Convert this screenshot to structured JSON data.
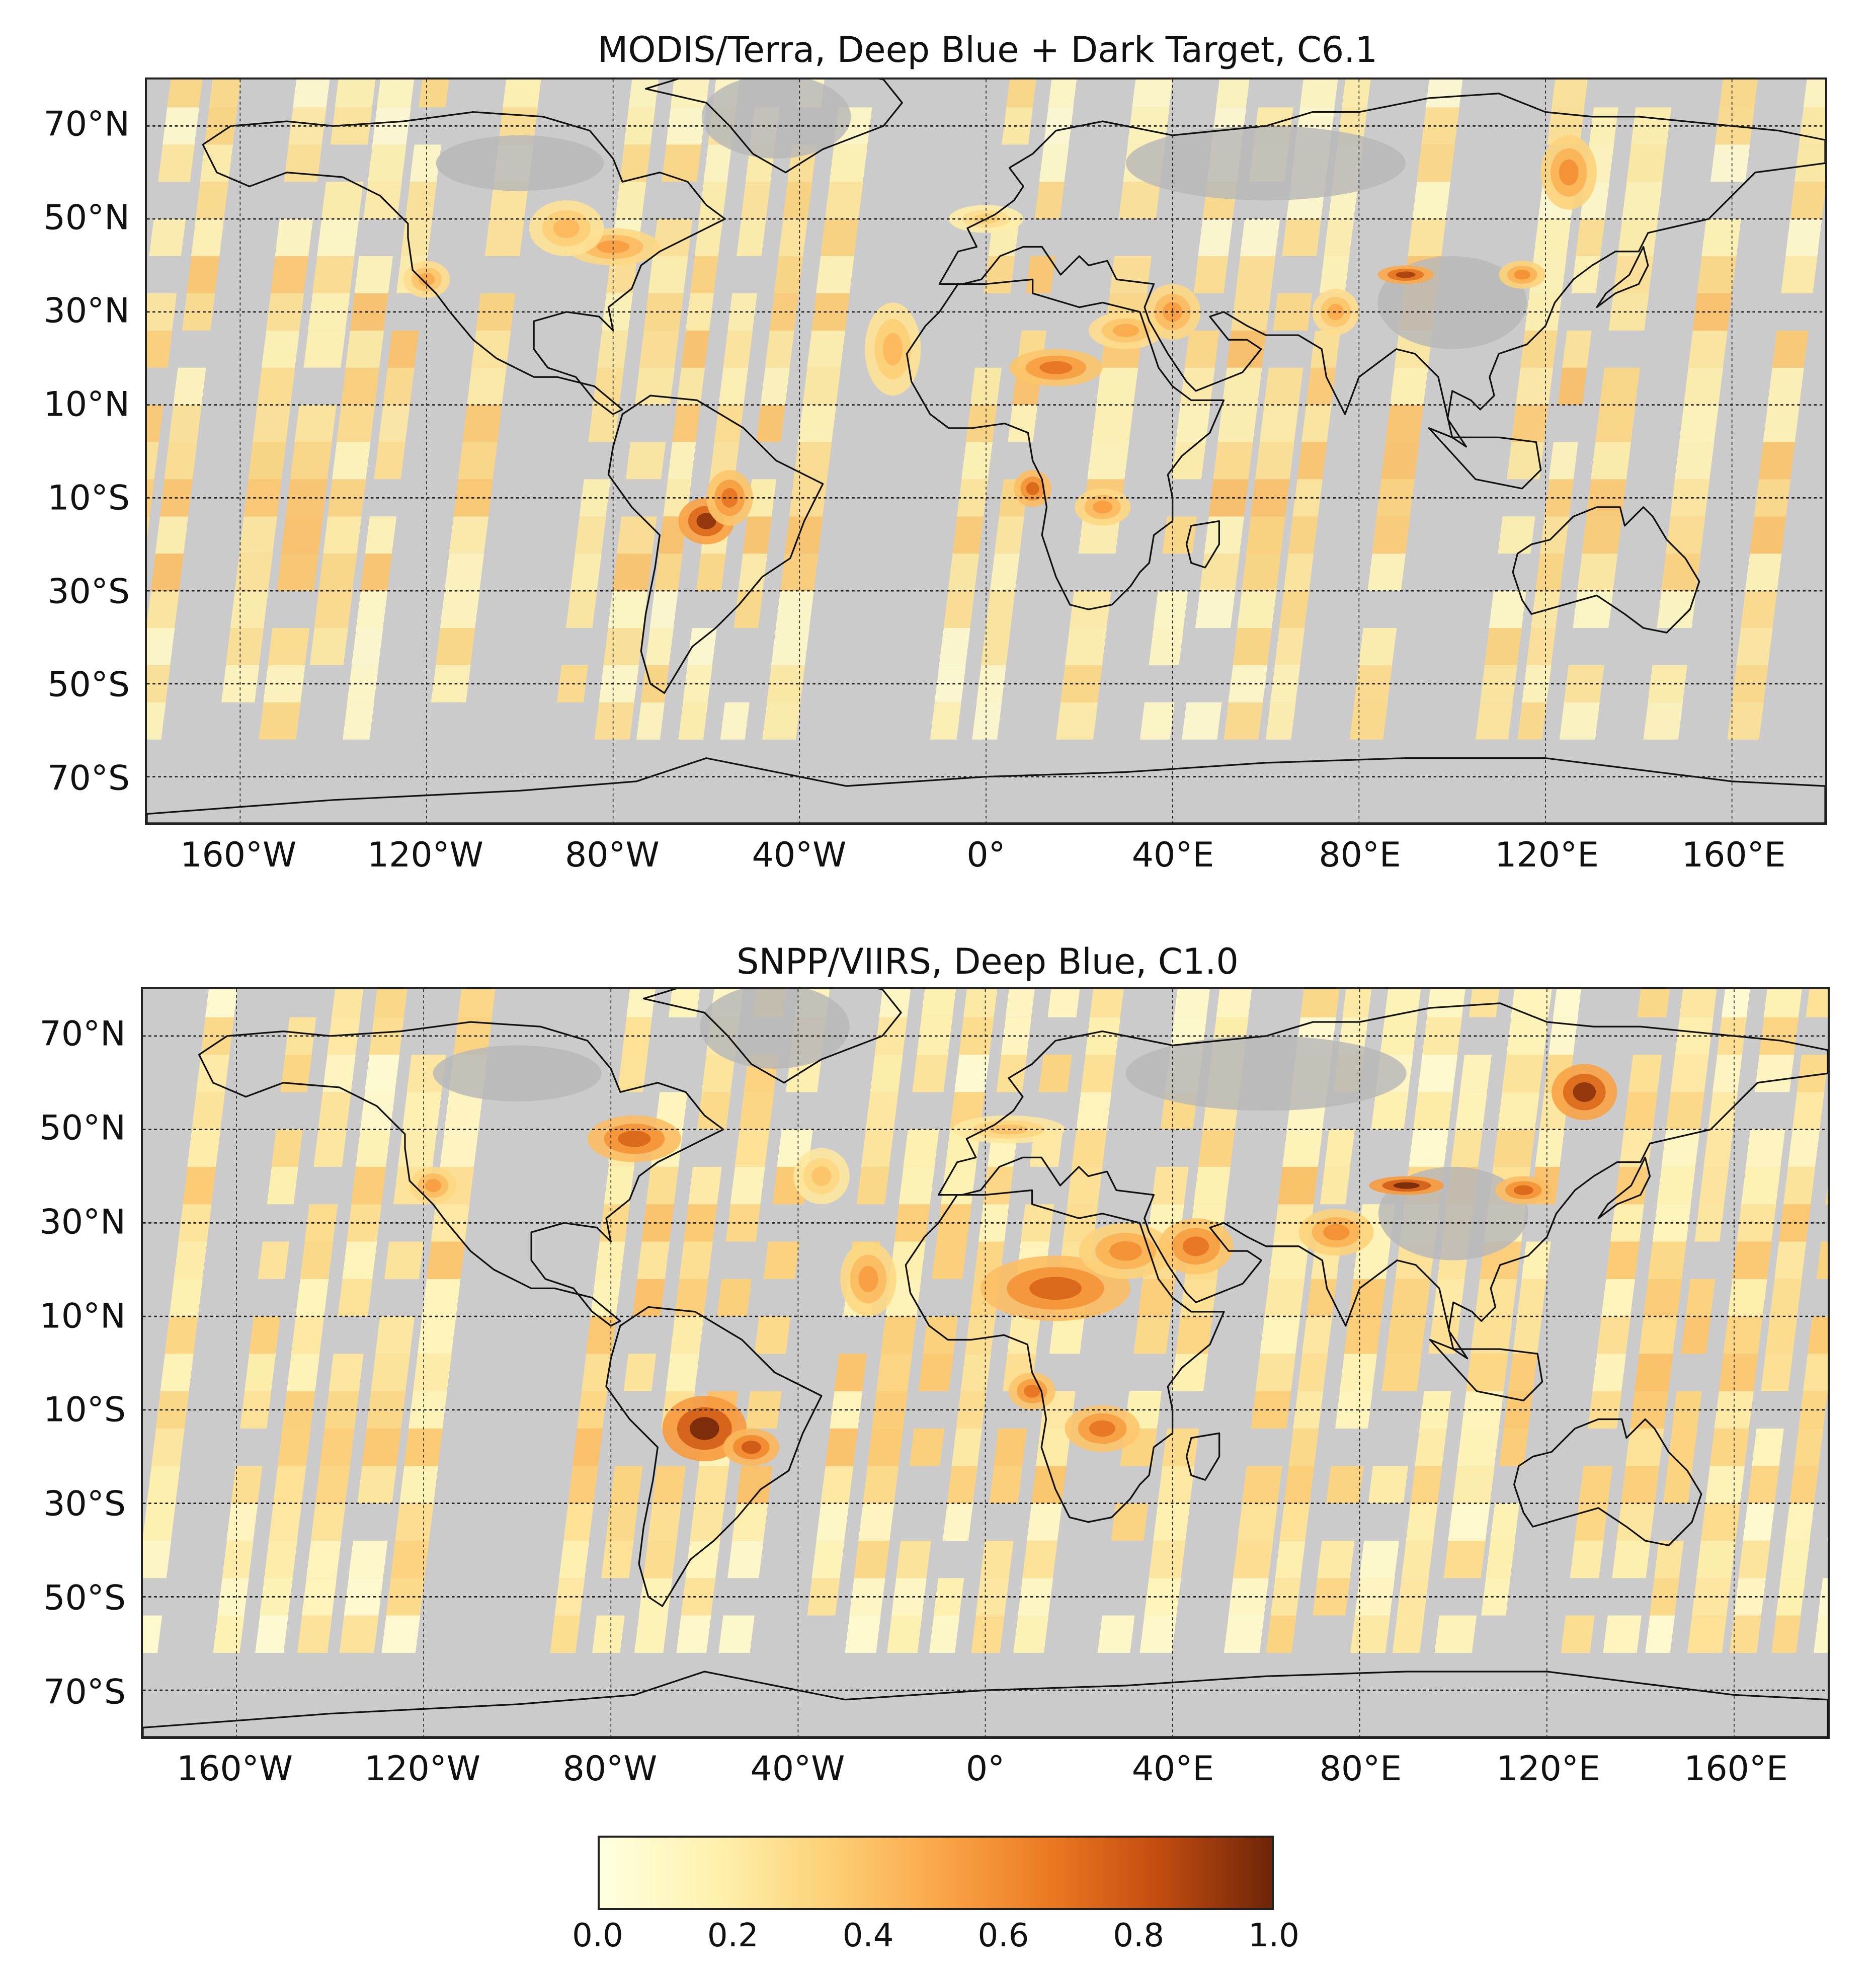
{
  "panels": [
    {
      "id": "top",
      "title": "MODIS/Terra, Deep Blue + Dark Target, C6.1"
    },
    {
      "id": "bottom",
      "title": "SNPP/VIIRS, Deep Blue, C1.0"
    }
  ],
  "lat_ticks": [
    "70°N",
    "50°N",
    "30°N",
    "10°N",
    "10°S",
    "30°S",
    "50°S",
    "70°S"
  ],
  "lat_values": [
    70,
    50,
    30,
    10,
    -10,
    -30,
    -50,
    -70
  ],
  "lon_ticks": [
    "160°W",
    "120°W",
    "80°W",
    "40°W",
    "0°",
    "40°E",
    "80°E",
    "120°E",
    "160°E"
  ],
  "lon_values": [
    -160,
    -120,
    -80,
    -40,
    0,
    40,
    80,
    120,
    160
  ],
  "extent": {
    "lon": [
      -180,
      180
    ],
    "lat": [
      -80,
      80
    ]
  },
  "colorbar": {
    "ticks": [
      "0.0",
      "0.2",
      "0.4",
      "0.6",
      "0.8",
      "1.0"
    ],
    "tick_values": [
      0.0,
      0.2,
      0.4,
      0.6,
      0.8,
      1.0
    ],
    "range": [
      0.0,
      1.0
    ],
    "colors": [
      "#ffffe0",
      "#fff2b0",
      "#fdd27a",
      "#fba84a",
      "#ec7a22",
      "#c24c10",
      "#6e2508"
    ]
  },
  "colors": {
    "no_data": "#cbcbcb",
    "land_no_data": "#b9b9b9",
    "coast": "#111111",
    "grid": "#222222"
  }
}
